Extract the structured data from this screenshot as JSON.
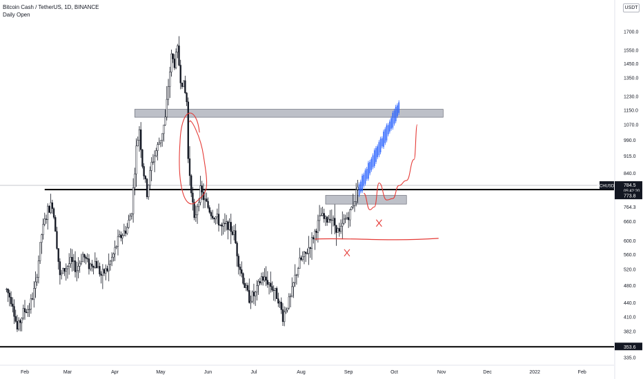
{
  "header": {
    "title": "Bitcoin Cash / TetherUS, 1D, BINANCE",
    "subtitle": "Daily Open"
  },
  "price_scale": {
    "currency": "USDT",
    "scale": "log"
  },
  "chart_data": {
    "type": "candlestick",
    "symbol_tag": "BCHUSDT",
    "last_price": "784.5",
    "countdown": "05:42:20",
    "price_labels": [
      "773.8",
      "764.3",
      "353.6"
    ],
    "yaxis_ticks": [
      "1700.0",
      "1550.0",
      "1450.0",
      "1350.0",
      "1230.0",
      "1150.0",
      "1070.0",
      "990.0",
      "915.0",
      "840.0",
      "660.0",
      "600.0",
      "560.0",
      "520.0",
      "480.0",
      "440.0",
      "410.0",
      "382.0",
      "335.0"
    ],
    "yaxis_tick_values": [
      1700,
      1550,
      1450,
      1350,
      1230,
      1150,
      1070,
      990,
      915,
      840,
      660,
      600,
      560,
      520,
      480,
      440,
      410,
      382,
      335
    ],
    "xaxis_ticks": [
      "Feb",
      "Mar",
      "Apr",
      "May",
      "Jun",
      "Jul",
      "Aug",
      "Sep",
      "Oct",
      "Nov",
      "Dec",
      "2022",
      "Feb"
    ],
    "xaxis_tick_dates": [
      "2021-02-01",
      "2021-03-01",
      "2021-04-01",
      "2021-05-01",
      "2021-06-01",
      "2021-07-01",
      "2021-08-01",
      "2021-09-01",
      "2021-10-01",
      "2021-11-01",
      "2021-12-01",
      "2022-01-01",
      "2022-02-01"
    ],
    "price_path": [
      [
        "2021-01-20",
        470
      ],
      [
        "2021-01-24",
        440
      ],
      [
        "2021-01-27",
        385
      ],
      [
        "2021-01-31",
        420
      ],
      [
        "2021-02-04",
        430
      ],
      [
        "2021-02-08",
        480
      ],
      [
        "2021-02-12",
        620
      ],
      [
        "2021-02-16",
        700
      ],
      [
        "2021-02-19",
        720
      ],
      [
        "2021-02-21",
        640
      ],
      [
        "2021-02-24",
        500
      ],
      [
        "2021-02-27",
        520
      ],
      [
        "2021-03-03",
        540
      ],
      [
        "2021-03-07",
        520
      ],
      [
        "2021-03-11",
        560
      ],
      [
        "2021-03-15",
        530
      ],
      [
        "2021-03-19",
        540
      ],
      [
        "2021-03-23",
        505
      ],
      [
        "2021-03-27",
        520
      ],
      [
        "2021-03-31",
        560
      ],
      [
        "2021-04-03",
        600
      ],
      [
        "2021-04-06",
        620
      ],
      [
        "2021-04-09",
        640
      ],
      [
        "2021-04-12",
        700
      ],
      [
        "2021-04-15",
        950
      ],
      [
        "2021-04-17",
        1050
      ],
      [
        "2021-04-19",
        880
      ],
      [
        "2021-04-22",
        760
      ],
      [
        "2021-04-25",
        880
      ],
      [
        "2021-04-28",
        940
      ],
      [
        "2021-05-01",
        1000
      ],
      [
        "2021-05-04",
        1100
      ],
      [
        "2021-05-06",
        1300
      ],
      [
        "2021-05-08",
        1500
      ],
      [
        "2021-05-10",
        1450
      ],
      [
        "2021-05-12",
        1550
      ],
      [
        "2021-05-14",
        1350
      ],
      [
        "2021-05-16",
        1300
      ],
      [
        "2021-05-18",
        1200
      ],
      [
        "2021-05-19",
        900
      ],
      [
        "2021-05-21",
        780
      ],
      [
        "2021-05-23",
        660
      ],
      [
        "2021-05-25",
        720
      ],
      [
        "2021-05-27",
        770
      ],
      [
        "2021-05-30",
        730
      ],
      [
        "2021-06-03",
        690
      ],
      [
        "2021-06-07",
        670
      ],
      [
        "2021-06-10",
        640
      ],
      [
        "2021-06-14",
        650
      ],
      [
        "2021-06-18",
        620
      ],
      [
        "2021-06-21",
        540
      ],
      [
        "2021-06-25",
        480
      ],
      [
        "2021-06-28",
        450
      ],
      [
        "2021-07-02",
        460
      ],
      [
        "2021-07-06",
        500
      ],
      [
        "2021-07-10",
        490
      ],
      [
        "2021-07-14",
        470
      ],
      [
        "2021-07-17",
        450
      ],
      [
        "2021-07-20",
        410
      ],
      [
        "2021-07-22",
        430
      ],
      [
        "2021-07-25",
        450
      ],
      [
        "2021-07-28",
        500
      ],
      [
        "2021-07-31",
        540
      ],
      [
        "2021-08-04",
        560
      ],
      [
        "2021-08-08",
        600
      ],
      [
        "2021-08-11",
        640
      ],
      [
        "2021-08-14",
        680
      ],
      [
        "2021-08-17",
        660
      ],
      [
        "2021-08-20",
        680
      ],
      [
        "2021-08-23",
        650
      ],
      [
        "2021-08-26",
        620
      ],
      [
        "2021-08-29",
        660
      ],
      [
        "2021-09-02",
        690
      ],
      [
        "2021-09-05",
        740
      ],
      [
        "2021-09-07",
        784.5
      ]
    ],
    "annotations": [
      {
        "type": "zone",
        "y_range": [
          1110,
          1155
        ],
        "x_range": [
          "2021-04-14",
          "2021-11-02"
        ],
        "color": "#b2b5be"
      },
      {
        "type": "zone",
        "y_range": [
          720,
          752
        ],
        "x_range": [
          "2021-08-17",
          "2021-10-09"
        ],
        "color": "#b2b5be"
      },
      {
        "type": "hline",
        "y": 774,
        "x_start": "2021-02-14",
        "color": "#000000"
      },
      {
        "type": "hline",
        "y": 353.6,
        "color": "#000000"
      },
      {
        "type": "hline",
        "y": 605,
        "x_range": [
          "2021-08-10",
          "2021-10-30"
        ],
        "color": "#e53935",
        "style": "freehand"
      },
      {
        "type": "cross",
        "at": [
          "2021-09-21",
          655
        ],
        "color": "#e53935"
      },
      {
        "type": "cross",
        "at": [
          "2021-08-31",
          565
        ],
        "color": "#e53935"
      },
      {
        "type": "loop",
        "x_range": [
          "2021-05-10",
          "2021-05-30"
        ],
        "y_range": [
          715,
          1160
        ],
        "color": "#e53935"
      },
      {
        "type": "freehand",
        "points": [
          [
            "2021-09-11",
            760
          ],
          [
            "2021-09-15",
            700
          ],
          [
            "2021-09-18",
            710
          ],
          [
            "2021-09-21",
            800
          ],
          [
            "2021-09-26",
            735
          ],
          [
            "2021-09-30",
            740
          ],
          [
            "2021-10-04",
            790
          ],
          [
            "2021-10-09",
            810
          ],
          [
            "2021-10-14",
            900
          ],
          [
            "2021-10-16",
            1070
          ]
        ],
        "color": "#e53935"
      },
      {
        "type": "projection",
        "x_range": [
          "2021-09-08",
          "2021-10-04"
        ],
        "y_range": [
          774,
          1165
        ],
        "color": "#2962ff"
      }
    ]
  },
  "colors": {
    "candle": "#131722",
    "zone": "#b2b5be",
    "drawing_red": "#e53935",
    "projection_blue": "#2962ff",
    "label_bg": "#131722"
  }
}
